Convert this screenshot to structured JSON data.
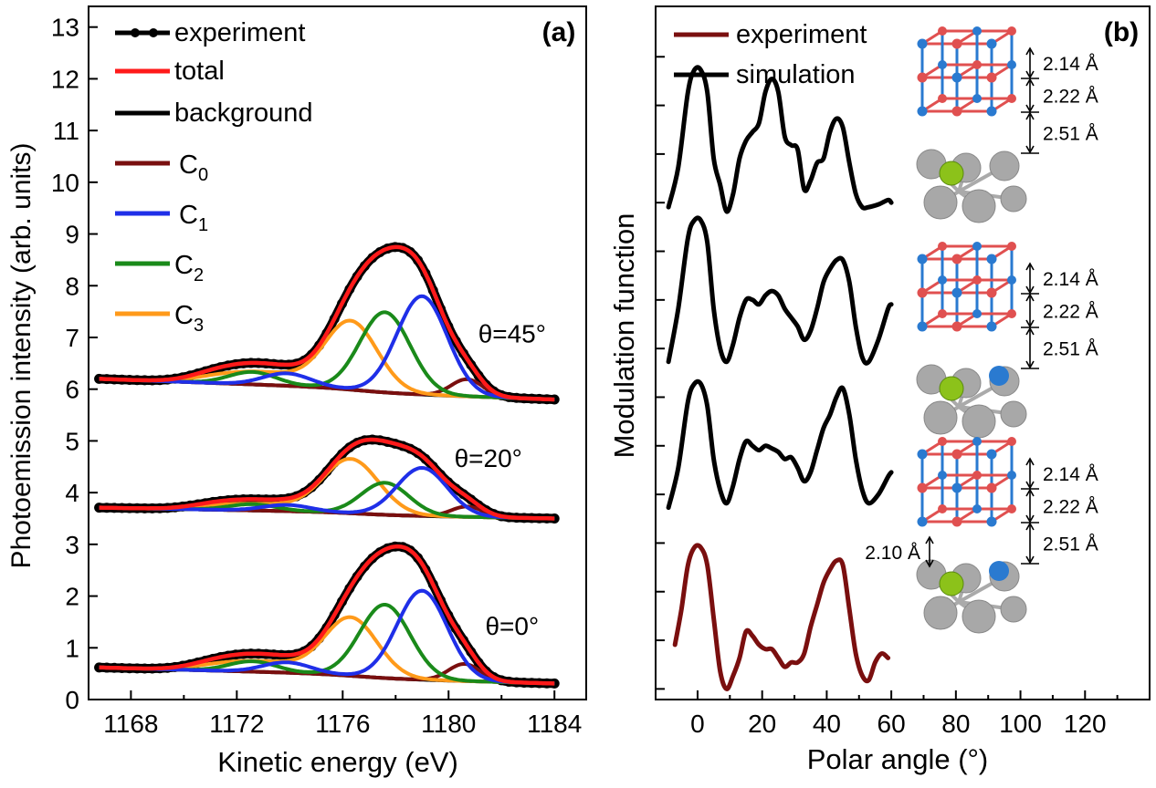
{
  "colors": {
    "experiment": "#000000",
    "total": "#ff1a1a",
    "background": "#000000",
    "C0": "#7a0f0f",
    "C1": "#1f2fe8",
    "C2": "#1a8a1a",
    "C3": "#ff9a1a",
    "exp_b": "#7a0f0f",
    "sim_b": "#000000",
    "atom_red": "#e05050",
    "atom_blue": "#2a7ad0",
    "atom_green": "#8cc21a",
    "atom_gray": "#a8a8a8"
  },
  "chart_data": [
    {
      "type": "line",
      "panel_label": "(a)",
      "xlabel": "Kinetic energy (eV)",
      "ylabel": "Photoemission intensity (arb. units)",
      "xlim": [
        1166.4,
        1185.2
      ],
      "ylim": [
        0,
        13.4
      ],
      "xticks": [
        1168,
        1172,
        1176,
        1180,
        1184
      ],
      "xtick_labels": [
        "1168",
        "1172",
        "1176",
        "1180",
        "1184"
      ],
      "yticks": [
        0,
        1,
        2,
        3,
        4,
        5,
        6,
        7,
        8,
        9,
        10,
        11,
        12,
        13
      ],
      "ytick_labels": [
        "0",
        "1",
        "2",
        "3",
        "4",
        "5",
        "6",
        "7",
        "8",
        "9",
        "10",
        "11",
        "12",
        "13"
      ],
      "legend": {
        "experiment": "experiment",
        "total": "total",
        "background": "background",
        "C0": "C",
        "C0_sub": "0",
        "C1": "C",
        "C1_sub": "1",
        "C2": "C",
        "C2_sub": "2",
        "C3": "C",
        "C3_sub": "3"
      },
      "x_start": 1166.8,
      "x_end": 1184.0,
      "spectra": [
        {
          "label": "θ=0°",
          "label_x": 1182.4,
          "label_y": 1.25,
          "background": {
            "start": 0.62,
            "end": 0.38,
            "step": 0.07
          },
          "components": {
            "C0": {
              "center": 1180.6,
              "height": 0.33,
              "width": 0.6
            },
            "C1": {
              "center": 1179.0,
              "height": 1.72,
              "width": 0.95
            },
            "C2": {
              "center": 1177.6,
              "height": 1.42,
              "width": 0.95
            },
            "C3": {
              "center": 1176.3,
              "height": 1.13,
              "width": 1.0
            },
            "extra": [
              {
                "center": 1171.3,
                "height": 0.18,
                "width": 1.0
              },
              {
                "center": 1172.6,
                "height": 0.2,
                "width": 0.9
              },
              {
                "center": 1173.9,
                "height": 0.2,
                "width": 0.9
              }
            ]
          }
        },
        {
          "label": "θ=20°",
          "label_x": 1181.5,
          "label_y": 4.5,
          "background": {
            "start": 3.71,
            "end": 3.55,
            "step": 0.05
          },
          "components": {
            "C0": {
              "center": 1180.7,
              "height": 0.2,
              "width": 0.6
            },
            "C1": {
              "center": 1179.0,
              "height": 0.93,
              "width": 0.95
            },
            "C2": {
              "center": 1177.6,
              "height": 0.62,
              "width": 0.9
            },
            "C3": {
              "center": 1176.3,
              "height": 1.05,
              "width": 1.05
            },
            "extra": [
              {
                "center": 1171.3,
                "height": 0.12,
                "width": 1.0
              },
              {
                "center": 1172.6,
                "height": 0.12,
                "width": 0.9
              },
              {
                "center": 1173.9,
                "height": 0.12,
                "width": 0.9
              }
            ]
          }
        },
        {
          "label": "θ=45°",
          "label_x": 1182.4,
          "label_y": 6.9,
          "background": {
            "start": 6.2,
            "end": 5.88,
            "step": 0.08
          },
          "components": {
            "C0": {
              "center": 1180.7,
              "height": 0.33,
              "width": 0.6
            },
            "C1": {
              "center": 1179.0,
              "height": 1.9,
              "width": 0.95
            },
            "C2": {
              "center": 1177.6,
              "height": 1.55,
              "width": 0.95
            },
            "C3": {
              "center": 1176.3,
              "height": 1.33,
              "width": 1.0
            },
            "extra": [
              {
                "center": 1171.3,
                "height": 0.21,
                "width": 1.0
              },
              {
                "center": 1172.6,
                "height": 0.24,
                "width": 0.9
              },
              {
                "center": 1173.9,
                "height": 0.24,
                "width": 0.9
              }
            ]
          }
        }
      ]
    },
    {
      "type": "line",
      "panel_label": "(b)",
      "xlabel": "Polar angle (°)",
      "ylabel": "Modulation function",
      "xlim": [
        -13,
        140
      ],
      "ylim": [
        -0.12,
        7.72
      ],
      "xticks": [
        0,
        20,
        40,
        60,
        80,
        100,
        120
      ],
      "xtick_labels": [
        "0",
        "20",
        "40",
        "60",
        "80",
        "100",
        "120"
      ],
      "legend": {
        "experiment": "experiment",
        "simulation": "simulation"
      },
      "series": [
        {
          "name": "simulation",
          "x": [
            -9,
            -6,
            -3,
            -1,
            1,
            3,
            5,
            7,
            9,
            11,
            13,
            15,
            17,
            19,
            21,
            23,
            25,
            27,
            29,
            31,
            33,
            35,
            37,
            39,
            41,
            43,
            45,
            47,
            49,
            51,
            53,
            56,
            59,
            60
          ],
          "y": [
            5.45,
            5.9,
            6.75,
            7.0,
            7.0,
            6.75,
            6.0,
            5.7,
            5.4,
            5.6,
            6.0,
            6.2,
            6.3,
            6.4,
            6.75,
            6.9,
            6.75,
            6.25,
            6.15,
            6.1,
            5.65,
            5.75,
            5.95,
            6.0,
            6.3,
            6.45,
            6.35,
            5.95,
            5.6,
            5.45,
            5.45,
            5.48,
            5.53,
            5.5
          ]
        },
        {
          "name": "simulation",
          "x": [
            -9,
            -6,
            -3,
            -1,
            1,
            3,
            5,
            7,
            9,
            11,
            13,
            15,
            17,
            19,
            21,
            23,
            25,
            27,
            29,
            31,
            33,
            35,
            37,
            39,
            41,
            43,
            45,
            47,
            49,
            51,
            53,
            56,
            59,
            60
          ],
          "y": [
            3.7,
            4.3,
            5.1,
            5.3,
            5.3,
            5.05,
            4.3,
            3.85,
            3.7,
            3.9,
            4.2,
            4.4,
            4.4,
            4.35,
            4.45,
            4.5,
            4.45,
            4.3,
            4.2,
            4.1,
            3.95,
            4.05,
            4.3,
            4.6,
            4.75,
            4.85,
            4.85,
            4.6,
            4.1,
            3.75,
            3.7,
            3.95,
            4.3,
            4.35
          ]
        },
        {
          "name": "simulation",
          "x": [
            -9,
            -6,
            -3,
            -1,
            1,
            3,
            5,
            7,
            9,
            11,
            13,
            15,
            17,
            19,
            21,
            23,
            25,
            27,
            29,
            31,
            33,
            35,
            37,
            39,
            41,
            43,
            45,
            47,
            49,
            51,
            53,
            56,
            59,
            60
          ],
          "y": [
            2.05,
            2.5,
            3.25,
            3.45,
            3.45,
            3.2,
            2.6,
            2.25,
            2.1,
            2.3,
            2.6,
            2.8,
            2.75,
            2.7,
            2.75,
            2.72,
            2.68,
            2.6,
            2.62,
            2.5,
            2.35,
            2.45,
            2.7,
            2.95,
            3.1,
            3.3,
            3.4,
            3.1,
            2.6,
            2.25,
            2.1,
            2.2,
            2.4,
            2.45
          ]
        },
        {
          "name": "experiment",
          "x": [
            -7,
            -5,
            -3,
            -1,
            1,
            3,
            5,
            7,
            9,
            11,
            13,
            15,
            17,
            19,
            21,
            23,
            25,
            27,
            29,
            31,
            33,
            35,
            37,
            39,
            41,
            43,
            45,
            47,
            49,
            51,
            53,
            55,
            57,
            59
          ],
          "y": [
            0.5,
            0.9,
            1.4,
            1.6,
            1.6,
            1.4,
            0.8,
            0.2,
            0.0,
            0.15,
            0.35,
            0.65,
            0.6,
            0.5,
            0.45,
            0.45,
            0.35,
            0.25,
            0.3,
            0.3,
            0.4,
            0.7,
            0.95,
            1.2,
            1.35,
            1.45,
            1.4,
            0.9,
            0.4,
            0.15,
            0.1,
            0.3,
            0.4,
            0.35
          ]
        }
      ],
      "structures": [
        {
          "spacings": [
            "2.14 Å",
            "2.22 Å",
            "2.51 Å"
          ],
          "extra_spacing": "",
          "cluster": "top"
        },
        {
          "spacings": [
            "2.14 Å",
            "2.22 Å",
            "2.51 Å"
          ],
          "extra_spacing": "",
          "cluster": "middle"
        },
        {
          "spacings": [
            "2.14 Å",
            "2.22 Å",
            "2.51 Å"
          ],
          "extra_spacing": "2.10 Å",
          "cluster": "bottom"
        }
      ]
    }
  ]
}
